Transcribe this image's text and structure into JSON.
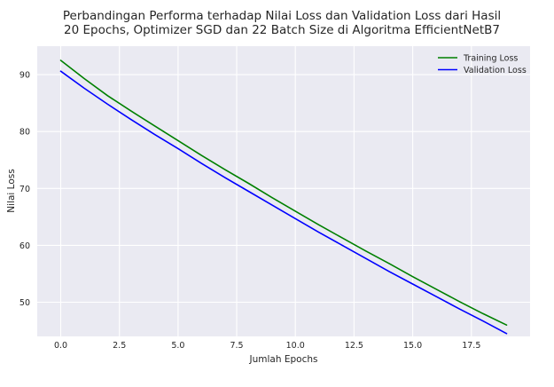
{
  "chart_data": {
    "type": "line",
    "title_lines": [
      "Perbandingan Performa terhadap Nilai Loss dan Validation Loss dari Hasil",
      "20 Epochs, Optimizer SGD dan 22 Batch Size di Algoritma EfficientNetB7"
    ],
    "xlabel": "Jumlah Epochs",
    "ylabel": "Nilai Loss",
    "x": [
      0,
      1,
      2,
      3,
      4,
      5,
      6,
      7,
      8,
      9,
      10,
      11,
      12,
      13,
      14,
      15,
      16,
      17,
      18,
      19
    ],
    "xlim": [
      -1.0,
      20.0
    ],
    "ylim": [
      44.0,
      95.0
    ],
    "xticks": [
      0.0,
      2.5,
      5.0,
      7.5,
      10.0,
      12.5,
      15.0,
      17.5
    ],
    "xtick_labels": [
      "0.0",
      "2.5",
      "5.0",
      "7.5",
      "10.0",
      "12.5",
      "15.0",
      "17.5"
    ],
    "yticks": [
      50,
      60,
      70,
      80,
      90
    ],
    "ytick_labels": [
      "50",
      "60",
      "70",
      "80",
      "90"
    ],
    "grid": true,
    "legend_position": "top-right",
    "series": [
      {
        "name": "Training Loss",
        "color": "#008000",
        "values": [
          92.5,
          89.3,
          86.3,
          83.6,
          81.0,
          78.4,
          75.8,
          73.3,
          70.9,
          68.4,
          66.0,
          63.6,
          61.3,
          59.0,
          56.8,
          54.5,
          52.3,
          50.1,
          48.0,
          46.0
        ]
      },
      {
        "name": "Validation Loss",
        "color": "#0000ff",
        "values": [
          90.6,
          87.6,
          84.8,
          82.1,
          79.5,
          77.0,
          74.4,
          71.9,
          69.5,
          67.1,
          64.7,
          62.3,
          60.0,
          57.7,
          55.4,
          53.2,
          51.0,
          48.8,
          46.7,
          44.5
        ]
      }
    ]
  }
}
